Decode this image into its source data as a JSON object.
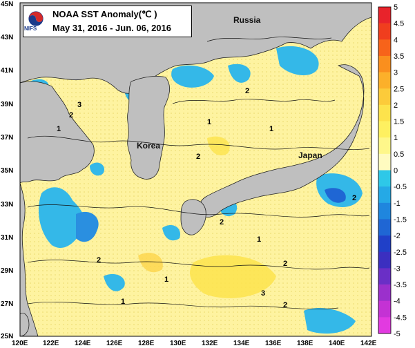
{
  "title": {
    "line1": "NOAA SST Anomaly(℃ )",
    "line2": "May 31, 2016 - Jun. 06, 2016",
    "logo_text": "NIFS"
  },
  "axes": {
    "lon_labels": [
      "120E",
      "122E",
      "124E",
      "126E",
      "128E",
      "130E",
      "132E",
      "134E",
      "136E",
      "138E",
      "140E",
      "142E"
    ],
    "lat_labels": [
      "45N",
      "43N",
      "41N",
      "39N",
      "37N",
      "35N",
      "33N",
      "31N",
      "29N",
      "27N",
      "25N"
    ]
  },
  "places": {
    "russia": "Russia",
    "korea": "Korea",
    "japan": "Japan"
  },
  "colorbar": {
    "labels": [
      "5",
      "4.5",
      "4",
      "3.5",
      "3",
      "2.5",
      "2",
      "1.5",
      "1",
      "0.5",
      "0",
      "-0.5",
      "-1",
      "-1.5",
      "-2",
      "-2.5",
      "-3",
      "-3.5",
      "-4",
      "-4.5",
      "-5"
    ],
    "colors": [
      "#e8232b",
      "#f03e1e",
      "#f7631a",
      "#fa8f1e",
      "#fcb02a",
      "#fccb3a",
      "#fde34c",
      "#fef060",
      "#fef78a",
      "#fffbc0",
      "#2ec8e8",
      "#25a9e6",
      "#1f86de",
      "#1f66d4",
      "#2040c8",
      "#3b2fc0",
      "#6a2fc6",
      "#9b30cc",
      "#c432d4",
      "#e23ae0"
    ]
  },
  "contour_labels": [
    "3",
    "2",
    "1",
    "2",
    "1",
    "2",
    "1",
    "2",
    "1",
    "2",
    "1",
    "2",
    "3",
    "2",
    "1",
    "2"
  ]
}
